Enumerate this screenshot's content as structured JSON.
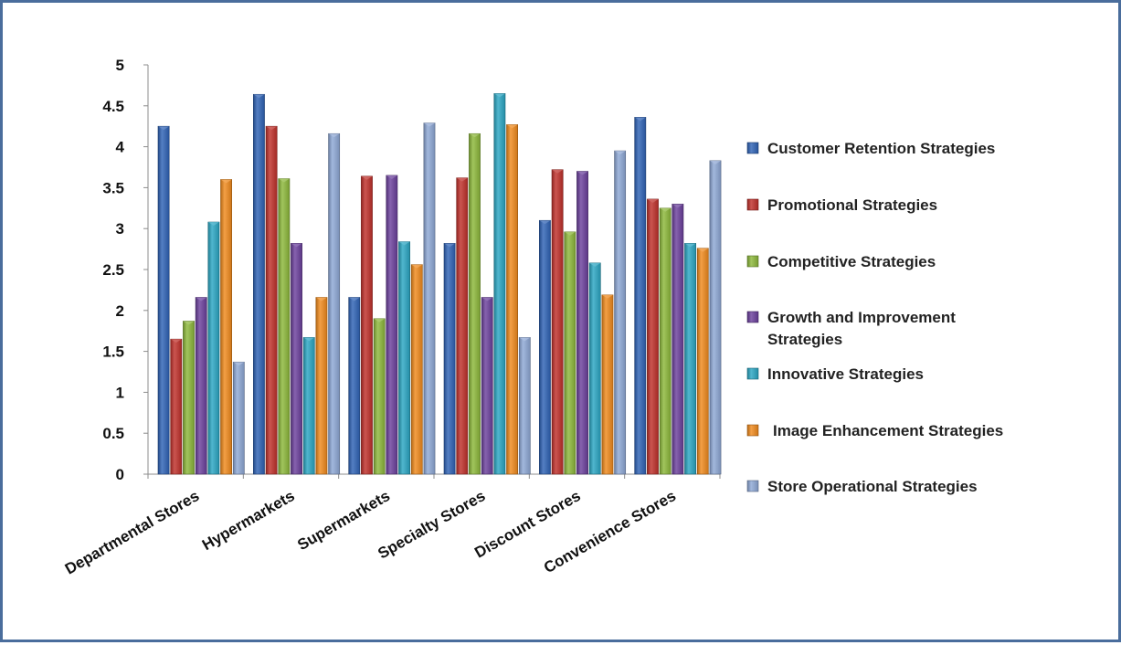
{
  "chart_data": {
    "type": "bar",
    "title": "",
    "xlabel": "",
    "ylabel": "",
    "ylim": [
      0,
      5
    ],
    "yticks": [
      "0",
      "0.5",
      "1",
      "1.5",
      "2",
      "2.5",
      "3",
      "3.5",
      "4",
      "4.5",
      "5"
    ],
    "grid": false,
    "legend_position": "right",
    "categories": [
      "Departmental Stores",
      "Hypermarkets",
      "Supermarkets",
      "Specialty Stores",
      "Discount Stores",
      "Convenience Stores"
    ],
    "series": [
      {
        "name": "Customer Retention Strategies",
        "color": "#2f63b6",
        "values": [
          4.25,
          4.64,
          2.16,
          2.82,
          3.1,
          4.36
        ]
      },
      {
        "name": "Promotional Strategies",
        "color": "#c0302a",
        "values": [
          1.65,
          4.25,
          3.64,
          3.62,
          3.72,
          3.36
        ]
      },
      {
        "name": "Competitive Strategies",
        "color": "#8cb83a",
        "values": [
          1.87,
          3.61,
          1.9,
          4.16,
          2.96,
          3.25
        ]
      },
      {
        "name": "Growth and Improvement Strategies",
        "color": "#6b3f9c",
        "values": [
          2.16,
          2.82,
          3.65,
          2.16,
          3.7,
          3.3
        ]
      },
      {
        "name": "Innovative Strategies",
        "color": "#2aa6c3",
        "values": [
          3.08,
          1.67,
          2.84,
          4.65,
          2.58,
          2.82
        ]
      },
      {
        "name": "Image Enhancement Strategies",
        "color": "#f08a1c",
        "values": [
          3.6,
          2.16,
          2.56,
          4.27,
          2.19,
          2.76
        ]
      },
      {
        "name": "Store Operational Strategies",
        "color": "#8ea8d6",
        "values": [
          1.37,
          4.16,
          4.29,
          1.67,
          3.95,
          3.83
        ]
      }
    ]
  }
}
